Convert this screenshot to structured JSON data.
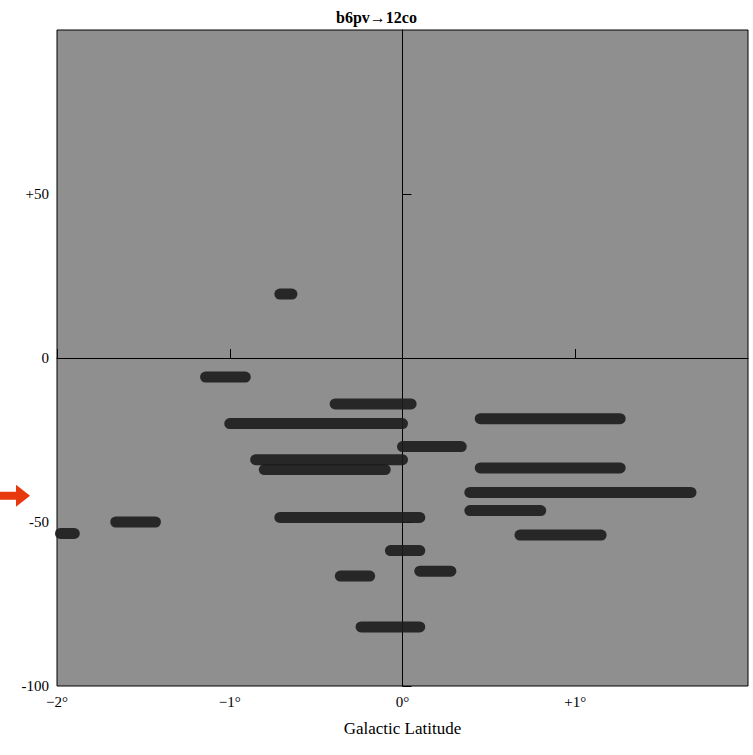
{
  "chart_data": {
    "type": "line",
    "title": "b6pv→12co",
    "xlabel": "Galactic Latitude",
    "color": "#1c1c1c",
    "xlim": [
      -2,
      2
    ],
    "xticks": [
      {
        "value": -2,
        "label": "−2°"
      },
      {
        "value": -1,
        "label": "−1°"
      },
      {
        "value": 0,
        "label": "0°"
      },
      {
        "value": 1,
        "label": "+1°"
      }
    ],
    "ylim": [
      -100,
      100
    ],
    "yticks": [
      -100,
      -50,
      0,
      {
        "value": 50,
        "label": "+50"
      }
    ],
    "grid": false,
    "tick_labels": true,
    "arrow": {
      "y": -42,
      "color": "#e8380d"
    },
    "series": [
      {
        "x": [
          -0.71,
          -0.64
        ],
        "values": [
          19.5,
          19.5
        ]
      },
      {
        "x": [
          -1.14,
          -0.91
        ],
        "values": [
          -5.8,
          -5.8
        ]
      },
      {
        "x": [
          -0.39,
          0.05
        ],
        "values": [
          -14,
          -14
        ]
      },
      {
        "x": [
          -1.0,
          0.0
        ],
        "values": [
          -20,
          -20
        ]
      },
      {
        "x": [
          0.45,
          1.26
        ],
        "values": [
          -18.5,
          -18.5
        ]
      },
      {
        "x": [
          -0.85,
          0.0
        ],
        "values": [
          -31,
          -31
        ]
      },
      {
        "x": [
          -0.8,
          -0.1
        ],
        "values": [
          -34,
          -34
        ]
      },
      {
        "x": [
          0.0,
          0.34
        ],
        "values": [
          -27,
          -27
        ]
      },
      {
        "x": [
          0.45,
          1.26
        ],
        "values": [
          -33.5,
          -33.5
        ]
      },
      {
        "x": [
          0.39,
          1.67
        ],
        "values": [
          -41,
          -41
        ]
      },
      {
        "x": [
          -1.66,
          -1.43
        ],
        "values": [
          -50,
          -50
        ]
      },
      {
        "x": [
          -1.98,
          -1.9
        ],
        "values": [
          -53.5,
          -53.5
        ]
      },
      {
        "x": [
          -0.71,
          0.1
        ],
        "values": [
          -48.6,
          -48.6
        ]
      },
      {
        "x": [
          0.39,
          0.8
        ],
        "values": [
          -46.5,
          -46.5
        ]
      },
      {
        "x": [
          0.68,
          1.15
        ],
        "values": [
          -54,
          -54
        ]
      },
      {
        "x": [
          -0.07,
          0.1
        ],
        "values": [
          -58.7,
          -58.7
        ]
      },
      {
        "x": [
          0.1,
          0.28
        ],
        "values": [
          -65,
          -65
        ]
      },
      {
        "x": [
          -0.36,
          -0.19
        ],
        "values": [
          -66.5,
          -66.5
        ]
      },
      {
        "x": [
          -0.24,
          0.1
        ],
        "values": [
          -82,
          -82
        ]
      }
    ]
  }
}
